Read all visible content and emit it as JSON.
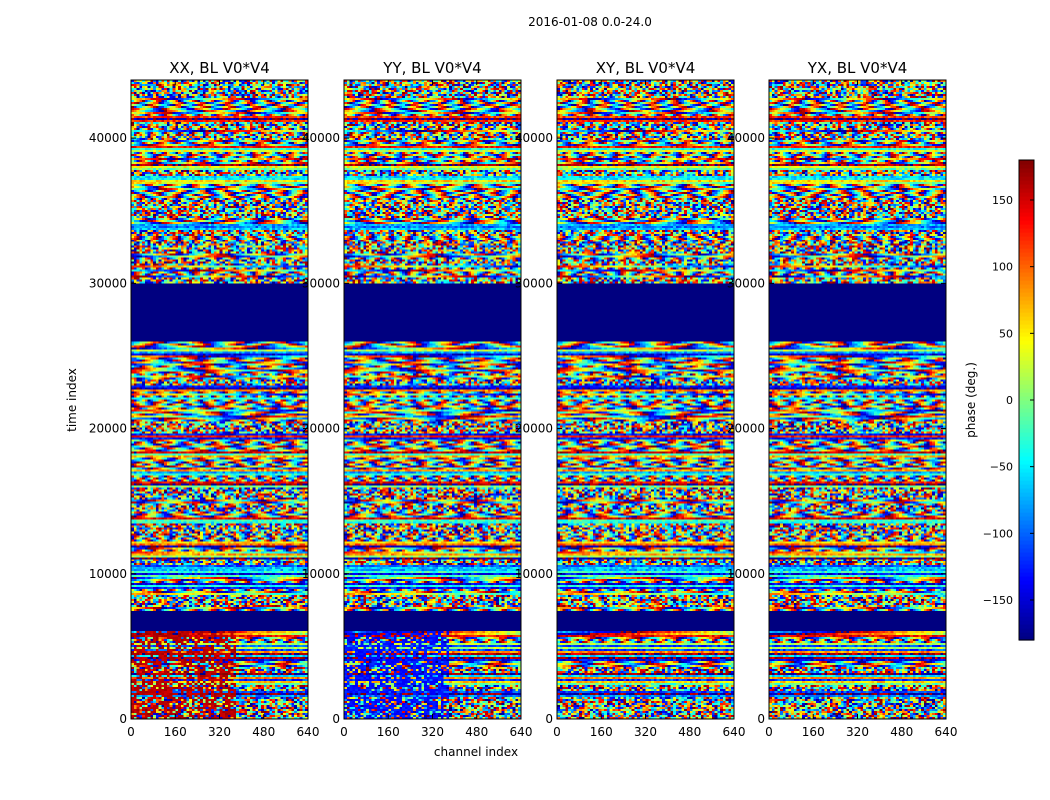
{
  "figure": {
    "suptitle": "2016-01-08 0.0-24.0",
    "xlabel": "channel index",
    "ylabel": "time index"
  },
  "chart_data": {
    "type": "heatmap",
    "x_range": [
      0,
      640
    ],
    "y_range": [
      0,
      44000
    ],
    "xticks": [
      0,
      160,
      320,
      480,
      640
    ],
    "yticks": [
      0,
      10000,
      20000,
      30000,
      40000
    ],
    "panels": [
      {
        "title": "XX, BL V0*V4",
        "pol": "XX"
      },
      {
        "title": "YY, BL V0*V4",
        "pol": "YY"
      },
      {
        "title": "XY, BL V0*V4",
        "pol": "XY"
      },
      {
        "title": "YX, BL V0*V4",
        "pol": "YX"
      }
    ],
    "flagged_rows": [
      {
        "start": 26000,
        "end": 30000,
        "value": -180
      },
      {
        "start": 6000,
        "end": 7400,
        "value": -180
      }
    ],
    "colorbar": {
      "label": "phase (deg.)",
      "range": [
        -180,
        180
      ],
      "ticks": [
        -150,
        -100,
        -50,
        0,
        50,
        100,
        150
      ],
      "colormap": "jet"
    }
  }
}
